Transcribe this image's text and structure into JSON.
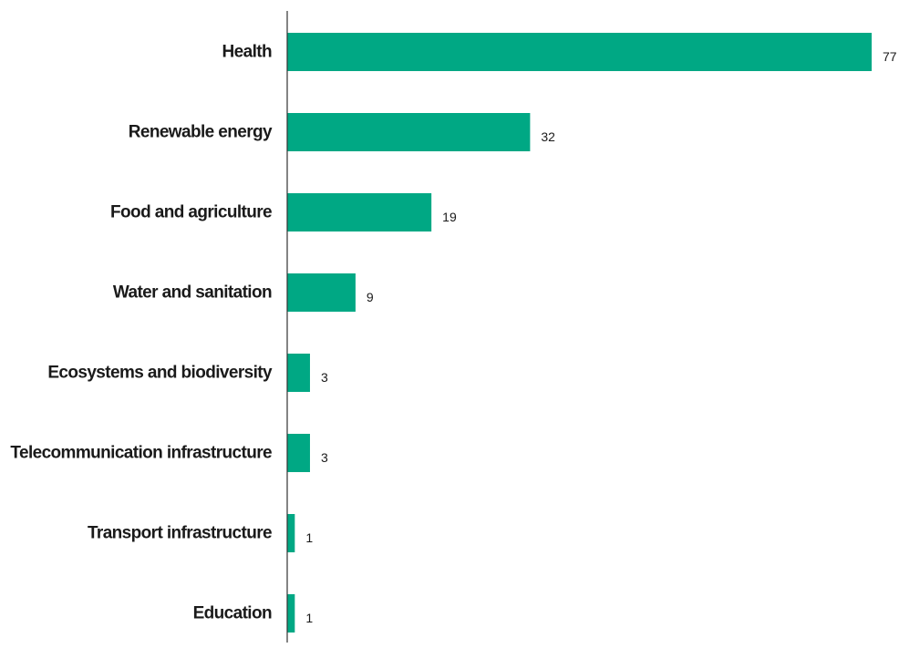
{
  "chart_data": {
    "type": "bar",
    "orientation": "horizontal",
    "categories": [
      "Health",
      "Renewable energy",
      "Food and agriculture",
      "Water and sanitation",
      "Ecosystems and biodiversity",
      "Telecommunication infrastructure",
      "Transport infrastructure",
      "Education"
    ],
    "values": [
      77,
      32,
      19,
      9,
      3,
      3,
      1,
      1
    ],
    "data_labels": [
      "77",
      "32",
      "19",
      "9",
      "3",
      "3",
      "1",
      "1"
    ],
    "title": "",
    "xlabel": "",
    "ylabel": "",
    "xlim": [
      0,
      77
    ],
    "grid": false,
    "legend": "none",
    "bar_color": "#00a884",
    "axis_color": "#333333"
  }
}
